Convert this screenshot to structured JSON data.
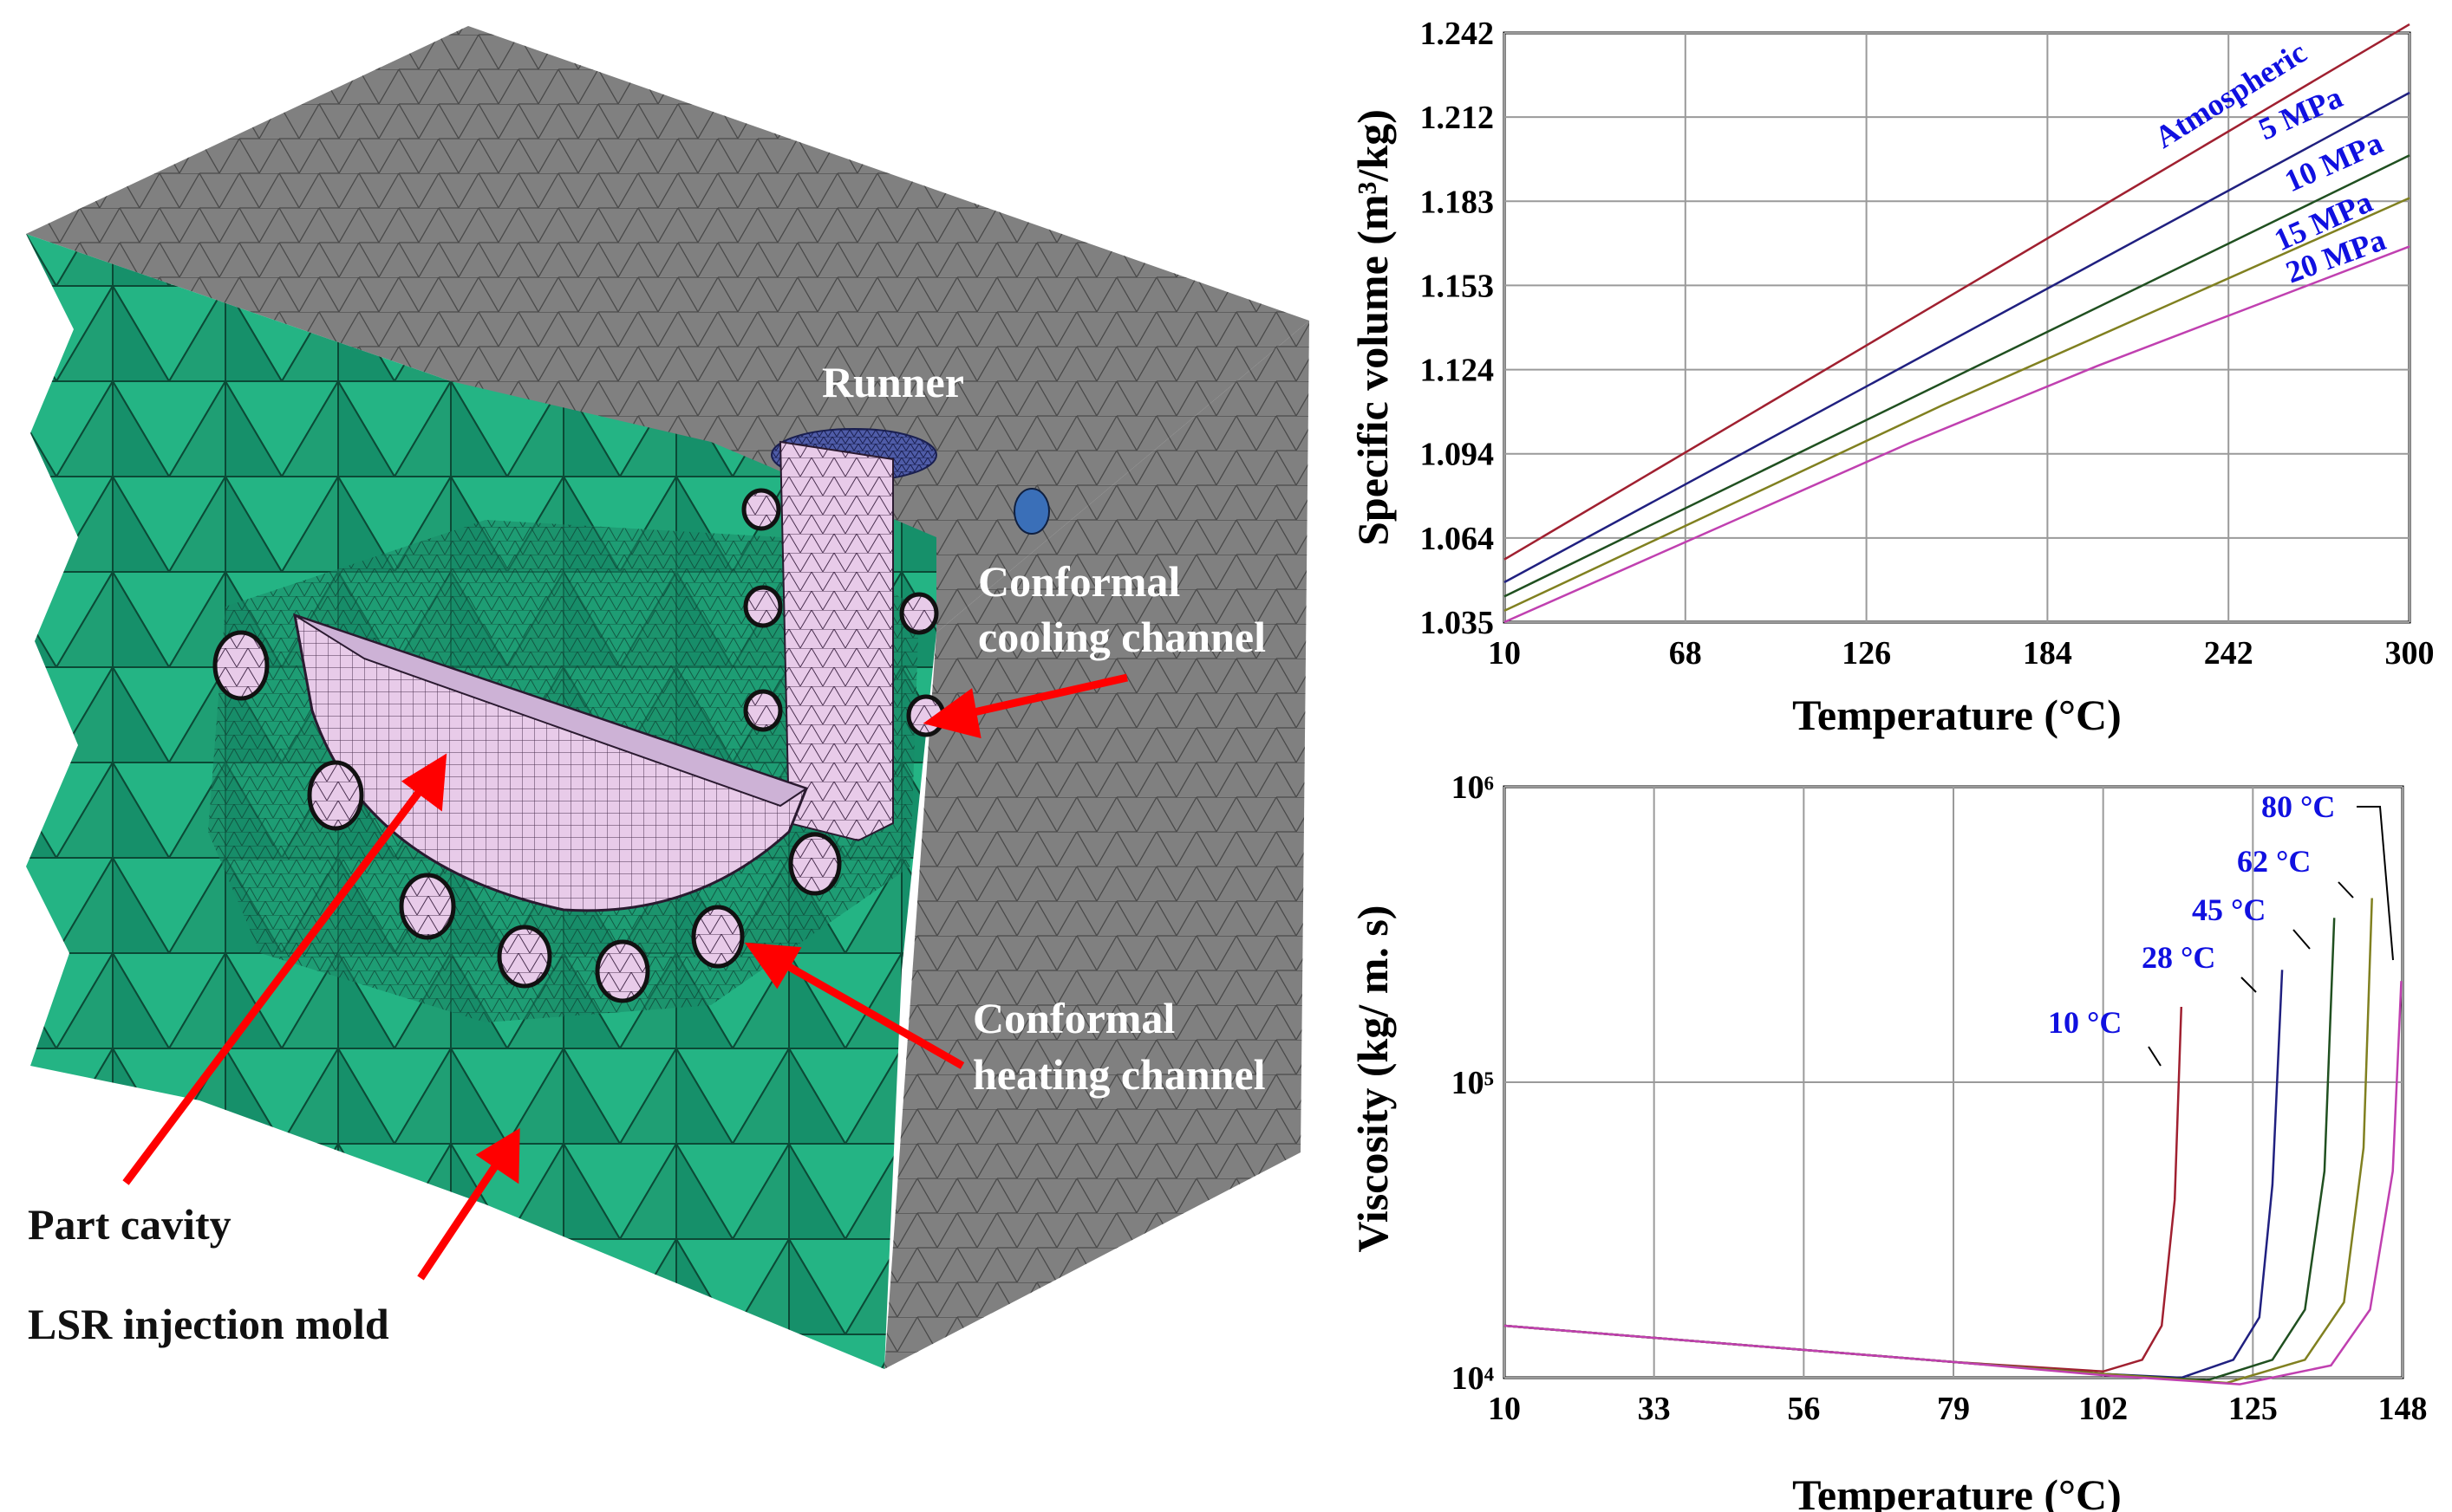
{
  "diagram": {
    "labels": {
      "runner": "Runner",
      "cooling_line1": "Conformal",
      "cooling_line2": "cooling channel",
      "heating_line1": "Conformal",
      "heating_line2": "heating channel",
      "part_cavity": "Part cavity",
      "mold": "LSR injection mold"
    },
    "colors": {
      "mold_surface": "#808080",
      "mold_green": "#1a9e78",
      "mold_green_light": "#2bc191",
      "cavity": "#e6c6e8",
      "arrow": "#ff0000"
    }
  },
  "chart_data": [
    {
      "type": "line",
      "xlabel": "Temperature (°C)",
      "ylabel": "Specific volume (m³/kg)",
      "xlim": [
        10,
        300
      ],
      "ylim": [
        1.035,
        1.242
      ],
      "xticks": [
        "10",
        "68",
        "126",
        "184",
        "242",
        "300"
      ],
      "yticks": [
        "1.035",
        "1.064",
        "1.094",
        "1.124",
        "1.153",
        "1.183",
        "1.212",
        "1.242"
      ],
      "grid": true,
      "series": [
        {
          "name": "Atmospheric",
          "color": "#a02030",
          "x": [
            10,
            300
          ],
          "y": [
            1.057,
            1.245
          ]
        },
        {
          "name": "5 MPa",
          "color": "#202080",
          "x": [
            10,
            300
          ],
          "y": [
            1.049,
            1.221
          ]
        },
        {
          "name": "10 MPa",
          "color": "#205020",
          "x": [
            10,
            300
          ],
          "y": [
            1.044,
            1.199
          ]
        },
        {
          "name": "15 MPa",
          "color": "#808020",
          "x": [
            10,
            150,
            300
          ],
          "y": [
            1.039,
            1.111,
            1.184
          ]
        },
        {
          "name": "20 MPa",
          "color": "#c040b0",
          "x": [
            10,
            140,
            200,
            300
          ],
          "y": [
            1.035,
            1.098,
            1.125,
            1.167
          ]
        }
      ]
    },
    {
      "type": "line",
      "xlabel": "Temperature (°C)",
      "ylabel": "Viscosity (kg/ m. s)",
      "xlim": [
        10,
        148
      ],
      "ylim": [
        10000,
        1000000
      ],
      "yscale": "log",
      "xticks": [
        "10",
        "33",
        "56",
        "79",
        "102",
        "125",
        "148"
      ],
      "yticks": [
        "10⁴",
        "10⁵",
        "10⁶"
      ],
      "grid": true,
      "series": [
        {
          "name": "10 °C",
          "color": "#a02030",
          "x": [
            10,
            79,
            102,
            108,
            111,
            113,
            114
          ],
          "y": [
            15000,
            11300,
            10500,
            11500,
            15000,
            40000,
            180000
          ]
        },
        {
          "name": "28 °C",
          "color": "#202080",
          "x": [
            10,
            79,
            102,
            114,
            122,
            126,
            128,
            129.5
          ],
          "y": [
            15000,
            11300,
            10300,
            10000,
            11500,
            16000,
            45000,
            240000
          ]
        },
        {
          "name": "45 °C",
          "color": "#205020",
          "x": [
            10,
            79,
            102,
            118,
            128,
            133,
            136,
            137.5
          ],
          "y": [
            15000,
            11300,
            10300,
            9800,
            11500,
            17000,
            50000,
            360000
          ]
        },
        {
          "name": "62 °C",
          "color": "#808020",
          "x": [
            10,
            79,
            102,
            121,
            133,
            139,
            142,
            143.3
          ],
          "y": [
            15000,
            11300,
            10300,
            9600,
            11500,
            18000,
            60000,
            420000
          ]
        },
        {
          "name": "80 °C",
          "color": "#c040b0",
          "x": [
            10,
            79,
            102,
            123,
            137,
            143,
            146.5,
            147.8
          ],
          "y": [
            15000,
            11300,
            10200,
            9500,
            11000,
            17000,
            50000,
            220000
          ]
        }
      ]
    }
  ]
}
